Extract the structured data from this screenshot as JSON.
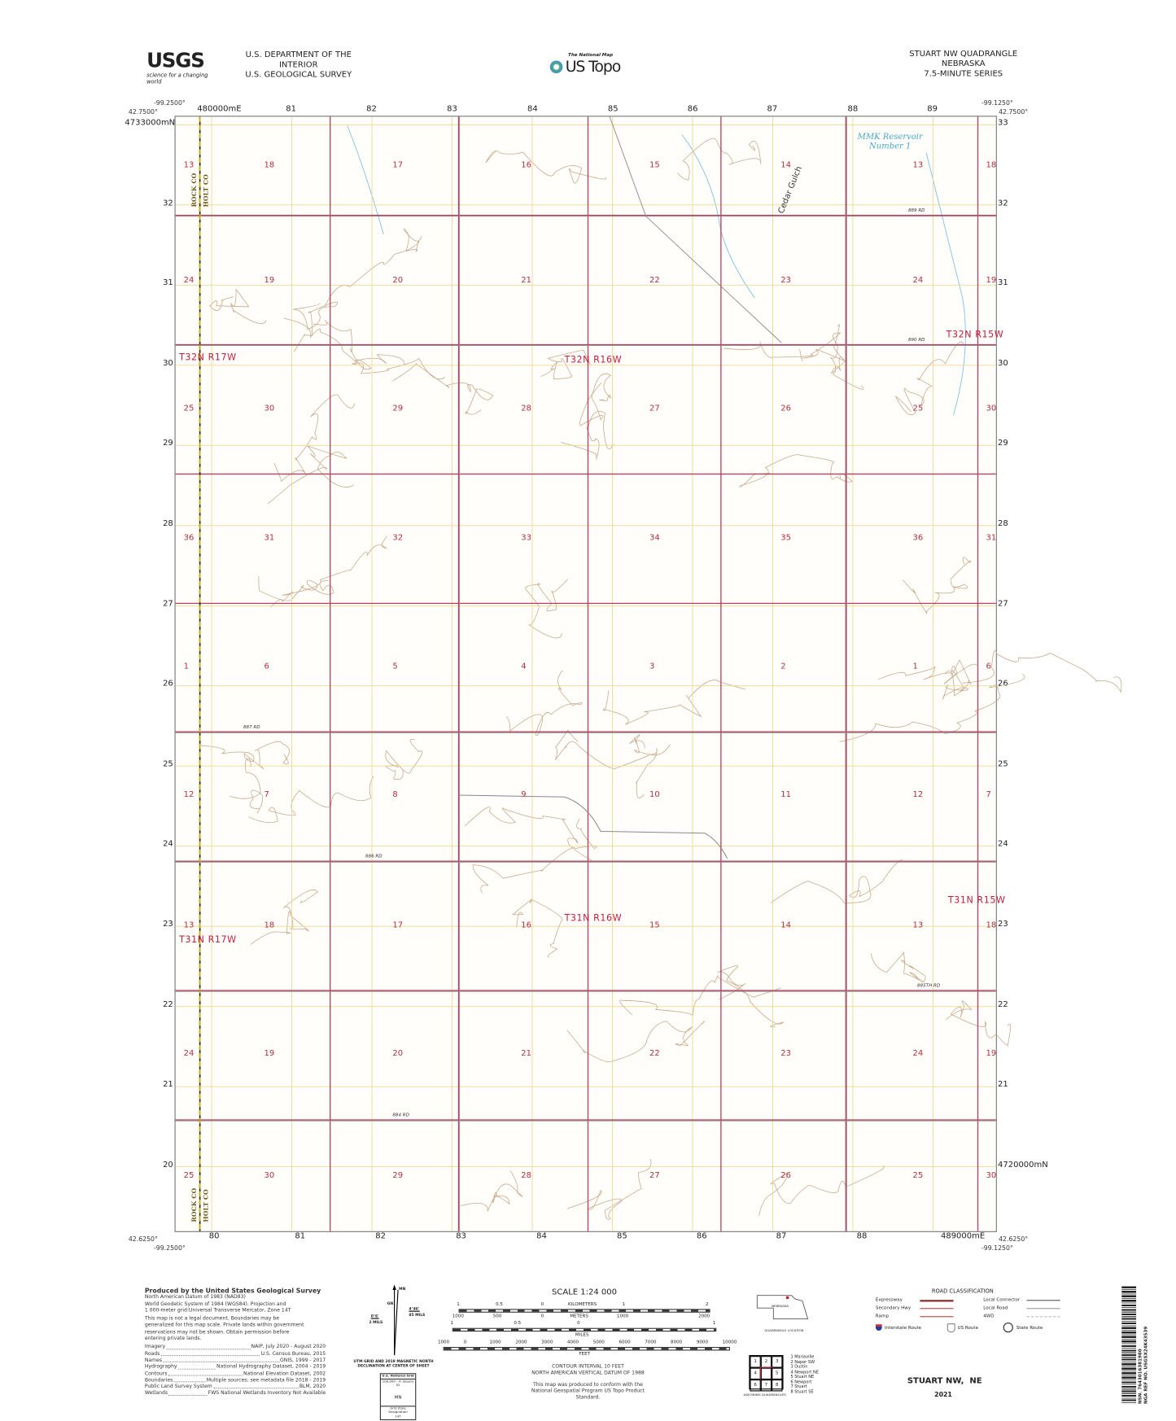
{
  "header": {
    "agency_logo": "USGS",
    "agency_tagline": "science for a changing world",
    "department": "U.S. DEPARTMENT OF THE INTERIOR",
    "survey": "U.S. GEOLOGICAL SURVEY",
    "product_kicker": "The National Map",
    "product_name": "US Topo",
    "quad_title": "STUART NW QUADRANGLE",
    "state": "NEBRASKA",
    "series": "7.5-MINUTE SERIES"
  },
  "corners": {
    "top_left_lon": "-99.2500°",
    "top_left_lat": "42.7500°",
    "top_right_lon": "-99.1250°",
    "top_right_lat": "42.7500°",
    "bottom_left_lon": "-99.2500°",
    "bottom_left_lat": "42.6250°",
    "bottom_right_lon": "-99.1250°",
    "bottom_right_lat": "42.6250°"
  },
  "grid": {
    "eastings_top": [
      "480000mE",
      "81",
      "82",
      "83",
      "84",
      "85",
      "86",
      "87",
      "88",
      "89"
    ],
    "eastings_bottom": [
      "80",
      "81",
      "82",
      "83",
      "84",
      "85",
      "86",
      "87",
      "88",
      "489000mE"
    ],
    "northings_left": [
      "4733000mN",
      "32",
      "31",
      "30",
      "29",
      "28",
      "27",
      "26",
      "25",
      "24",
      "23",
      "22",
      "21",
      "20"
    ],
    "northings_right": [
      "33",
      "32",
      "31",
      "30",
      "29",
      "28",
      "27",
      "26",
      "25",
      "24",
      "23",
      "22",
      "21",
      "4720000mN"
    ]
  },
  "sections": [
    [
      "13",
      "18",
      "17",
      "16",
      "15",
      "14",
      "13",
      "18"
    ],
    [
      "24",
      "19",
      "20",
      "21",
      "22",
      "23",
      "24",
      "19"
    ],
    [
      "25",
      "30",
      "29",
      "28",
      "27",
      "26",
      "25",
      "30"
    ],
    [
      "36",
      "31",
      "32",
      "33",
      "34",
      "35",
      "36",
      "31"
    ],
    [
      "1",
      "6",
      "5",
      "4",
      "3",
      "2",
      "1",
      "6"
    ],
    [
      "12",
      "7",
      "8",
      "9",
      "10",
      "11",
      "12",
      "7"
    ],
    [
      "13",
      "18",
      "17",
      "16",
      "15",
      "14",
      "13",
      "18"
    ],
    [
      "24",
      "19",
      "20",
      "21",
      "22",
      "23",
      "24",
      "19"
    ],
    [
      "25",
      "30",
      "29",
      "28",
      "27",
      "26",
      "25",
      "30"
    ]
  ],
  "townships": [
    "T32N R17W",
    "T32N R16W",
    "T32N R15W",
    "T31N R17W",
    "T31N R16W",
    "T31N R15W"
  ],
  "roads": [
    "889 RD",
    "890 RD",
    "887 RD",
    "886 RD",
    "885TH RD",
    "884 RD"
  ],
  "features": {
    "reservoir": "MMK Reservoir Number 1",
    "gulch": "Cedar Gulch",
    "county_west": "ROCK CO",
    "county_east": "HOLT CO"
  },
  "colors": {
    "section_line": "#b84060",
    "grid_line": "#f0d890",
    "contour": "#c8a888",
    "water": "#7cc0e0",
    "road": "#888888",
    "county_line": "#c8b000"
  },
  "footer": {
    "producer": "Produced by the United States Geological Survey",
    "datum_lines": [
      "North American Datum of 1983 (NAD83)",
      "World Geodetic System of 1984 (WGS84). Projection and",
      "1 000-meter grid:Universal Transverse Mercator, Zone 14T"
    ],
    "disclaimer_lines": [
      "This map is not a legal document. Boundaries may be",
      "generalized for this map scale. Private lands within government",
      "reservations may not be shown. Obtain permission before",
      "entering private lands."
    ],
    "sources": [
      {
        "label": "Imagery",
        "value": "NAIP, July 2020 - August 2020"
      },
      {
        "label": "Roads",
        "value": "U.S. Census Bureau, 2015"
      },
      {
        "label": "Names",
        "value": "GNIS, 1999 - 2017"
      },
      {
        "label": "Hydrography",
        "value": "National Hydrography Dataset, 2004 - 2019"
      },
      {
        "label": "Contours",
        "value": "National Elevation Dataset, 2002"
      },
      {
        "label": "Boundaries",
        "value": "Multiple sources; see metadata file 2018 - 2019"
      },
      {
        "label": "Public Land Survey System",
        "value": "BLM, 2020"
      },
      {
        "label": "Wetlands",
        "value": "FWS National Wetlands Inventory Not Available"
      }
    ],
    "declination": {
      "mn": "MN",
      "gn": "GN",
      "east_angle": "4°46'",
      "east_mils": "85 MILS",
      "west_angle": "0°6'",
      "west_mils": "2 MILS",
      "caption": "UTM GRID AND 2019 MAGNETIC NORTH DECLINATION AT CENTER OF SHEET"
    },
    "grid_box": {
      "title": "U.S. National Grid",
      "subtitle": "100,000 - m Square ID",
      "square_id": "MN",
      "zone_label": "Grid Zone Designation",
      "zone": "14T"
    },
    "scale": {
      "title": "SCALE 1:24 000",
      "km_label": "KILOMETERS",
      "km_ticks": [
        "1",
        "0.5",
        "0",
        "1",
        "2"
      ],
      "m_label": "METERS",
      "m_ticks": [
        "1000",
        "500",
        "0",
        "1000",
        "2000"
      ],
      "mi_label": "MILES",
      "mi_ticks": [
        "1",
        "0.5",
        "0",
        "1"
      ],
      "ft_label": "FEET",
      "ft_ticks": [
        "1000",
        "0",
        "1000",
        "2000",
        "3000",
        "4000",
        "5000",
        "6000",
        "7000",
        "8000",
        "9000",
        "10000"
      ]
    },
    "contour_note": "CONTOUR INTERVAL 10 FEET",
    "vertical_datum": "NORTH AMERICAN VERTICAL DATUM OF 1988",
    "standard_note_1": "This map was produced to conform with the",
    "standard_note_2": "National Geospatial Program US Topo Product Standard.",
    "location": {
      "state": "NEBRASKA",
      "caption": "QUADRANGLE LOCATION"
    },
    "adjoining": {
      "caption": "ADJOINING QUADRANGLES",
      "cells": [
        "1",
        "2",
        "3",
        "4",
        "",
        "5",
        "6",
        "7",
        "8"
      ],
      "names": [
        "1 Mariaville",
        "2 Naper SW",
        "3 Dustin",
        "4 Newport NE",
        "5 Stuart NE",
        "6 Newport",
        "7 Stuart",
        "8 Stuart SE"
      ]
    },
    "road_classification": {
      "title": "ROAD CLASSIFICATION",
      "items": [
        {
          "label": "Expressway",
          "color": "#8a2a2a"
        },
        {
          "label": "Local Connector",
          "color": "#555555"
        },
        {
          "label": "Secondary Hwy",
          "color": "#c04040"
        },
        {
          "label": "Local Road",
          "color": "#999999"
        },
        {
          "label": "Ramp",
          "color": "#c04040"
        },
        {
          "label": "4WD",
          "color": "#bbbbbb"
        }
      ],
      "shields": [
        "Interstate Route",
        "US Route",
        "State Route"
      ]
    },
    "quad_name": "STUART NW,  NE",
    "year": "2021",
    "barcode_nsn": "NSN. 7643016381980",
    "barcode_ref": "NGA REF NO. USGSX24K43539"
  }
}
